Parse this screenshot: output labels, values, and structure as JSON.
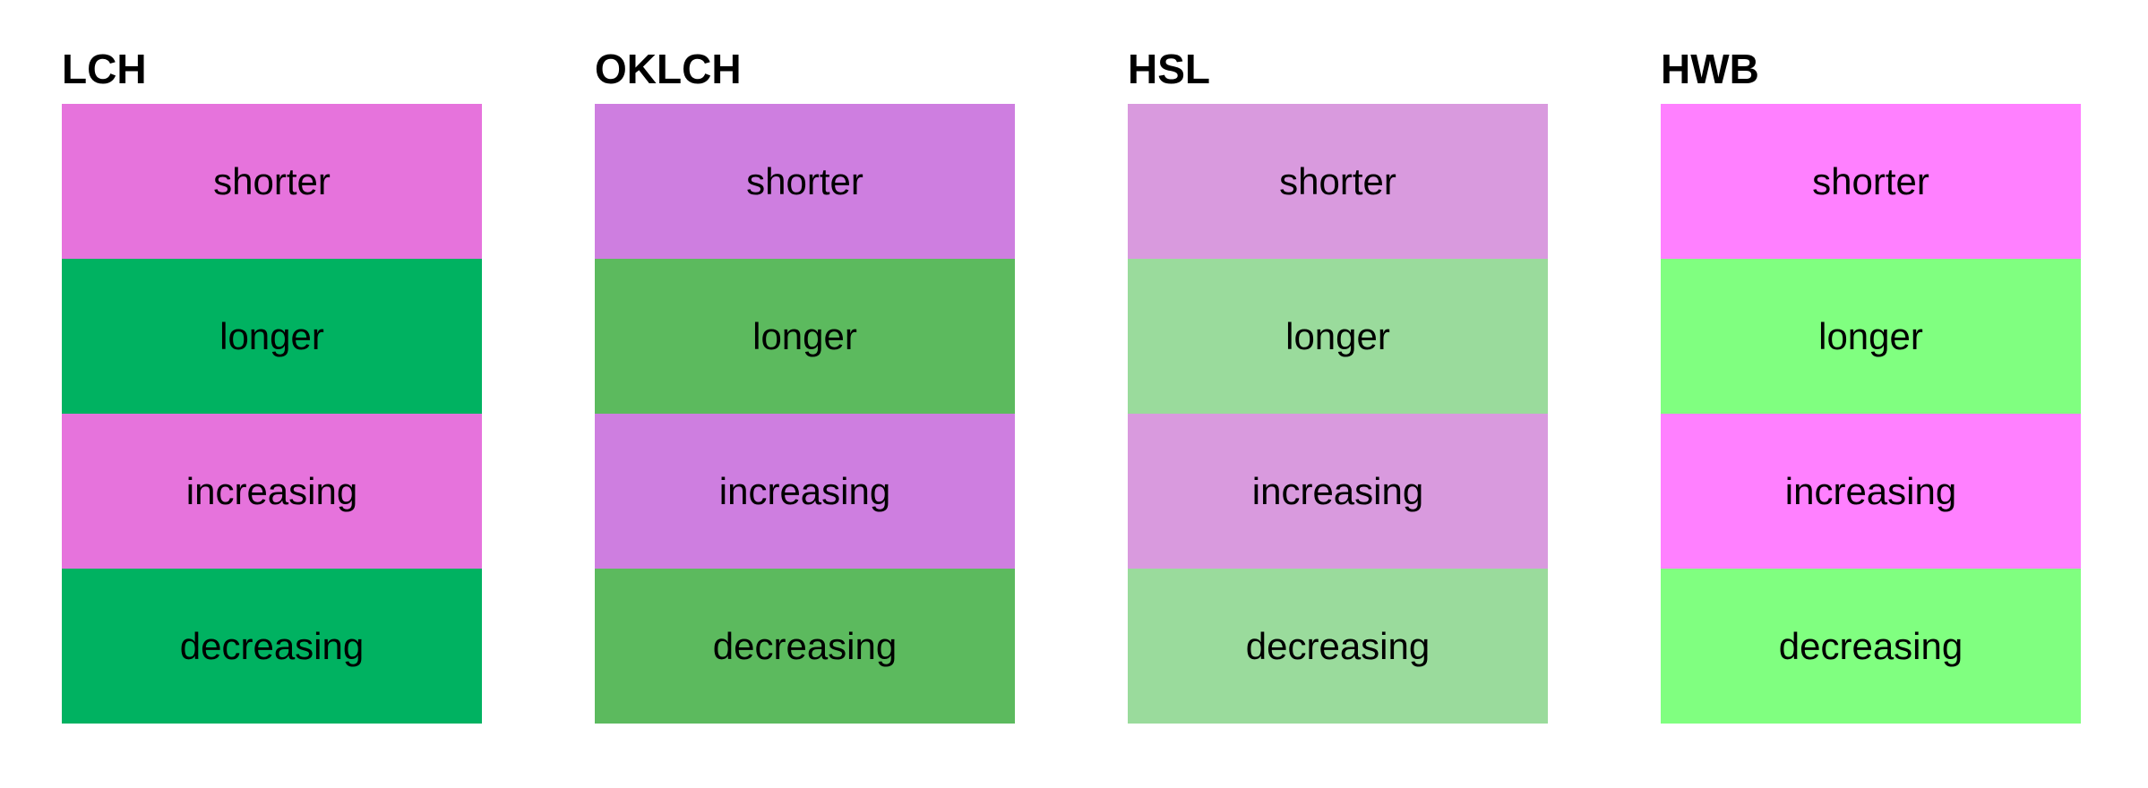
{
  "page": {
    "background": "#ffffff",
    "text_color": "#000000"
  },
  "columns": [
    {
      "title": "LCH",
      "swatches": [
        {
          "label": "shorter",
          "color": "#e673dc"
        },
        {
          "label": "longer",
          "color": "#00b261"
        },
        {
          "label": "increasing",
          "color": "#e673dc"
        },
        {
          "label": "decreasing",
          "color": "#00b261"
        }
      ]
    },
    {
      "title": "OKLCH",
      "swatches": [
        {
          "label": "shorter",
          "color": "#ce7ee0"
        },
        {
          "label": "longer",
          "color": "#5cba5e"
        },
        {
          "label": "increasing",
          "color": "#ce7ee0"
        },
        {
          "label": "decreasing",
          "color": "#5cba5e"
        }
      ]
    },
    {
      "title": "HSL",
      "swatches": [
        {
          "label": "shorter",
          "color": "#d99ade"
        },
        {
          "label": "longer",
          "color": "#9adb9c"
        },
        {
          "label": "increasing",
          "color": "#d99ade"
        },
        {
          "label": "decreasing",
          "color": "#9adb9c"
        }
      ]
    },
    {
      "title": "HWB",
      "swatches": [
        {
          "label": "shorter",
          "color": "#ff80ff"
        },
        {
          "label": "longer",
          "color": "#80ff80"
        },
        {
          "label": "increasing",
          "color": "#ff80ff"
        },
        {
          "label": "decreasing",
          "color": "#80ff80"
        }
      ]
    }
  ]
}
